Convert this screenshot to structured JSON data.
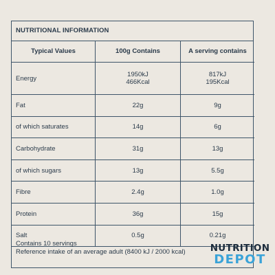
{
  "panel": {
    "title": "NUTRITIONAL INFORMATION",
    "headers": [
      "Typical Values",
      "100g Contains",
      "A serving contains"
    ],
    "energy": {
      "label": "Energy",
      "per100g_kj": "1950kJ",
      "per100g_kcal": "466Kcal",
      "serving_kj": "817kJ",
      "serving_kcal": "195Kcal"
    },
    "rows": [
      {
        "label": "Fat",
        "per100g": "22g",
        "serving": "9g"
      },
      {
        "label": "of which saturates",
        "per100g": "14g",
        "serving": "6g"
      },
      {
        "label": "Carbohydrate",
        "per100g": "31g",
        "serving": "13g"
      },
      {
        "label": "of which sugars",
        "per100g": "13g",
        "serving": "5.5g"
      },
      {
        "label": "Fibre",
        "per100g": "2.4g",
        "serving": "1.0g"
      },
      {
        "label": "Protein",
        "per100g": "36g",
        "serving": "15g"
      },
      {
        "label": "Salt",
        "per100g": "0.5g",
        "serving": "0.21g"
      }
    ],
    "footer": {
      "servings": "Contains 10 servings",
      "reference": "Reference intake of an average adult (8400 kJ / 2000 kcal)"
    }
  },
  "logo": {
    "line1": "NUTRITION",
    "line2": "DEPOT"
  },
  "colors": {
    "background": "#ece8e1",
    "border": "#3d5468",
    "text": "#2a3a4a",
    "logo_dark": "#1c2c3c",
    "logo_accent": "#3aa3d8"
  }
}
